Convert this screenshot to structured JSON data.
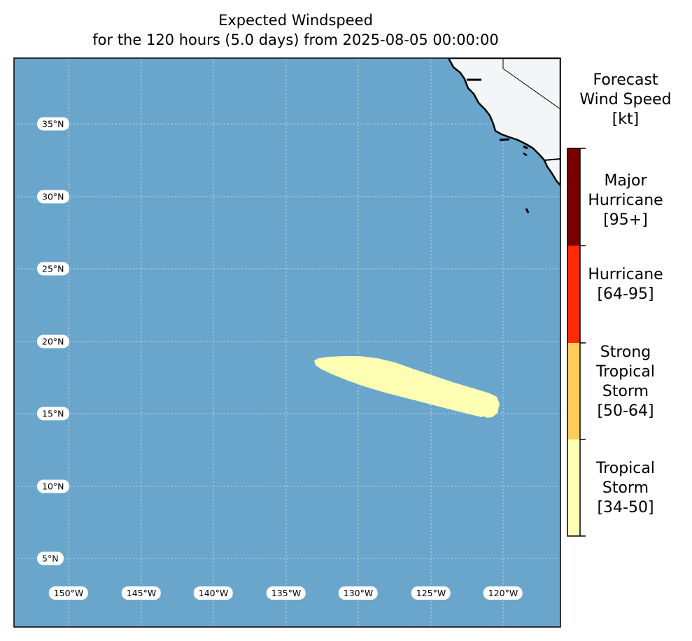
{
  "title": {
    "line1": "Expected Windspeed",
    "line2": "for the 120 hours (5.0 days) from 2025-08-05 00:00:00"
  },
  "map": {
    "ocean_color": "#6aa6cc",
    "land_color": "#f4f5f7",
    "gridline_color": "#c8d6e0",
    "lat_labels": [
      "35°N",
      "30°N",
      "25°N",
      "20°N",
      "15°N",
      "10°N",
      "5°N"
    ],
    "lon_labels": [
      "150°W",
      "145°W",
      "140°W",
      "135°W",
      "130°W",
      "125°W",
      "120°W"
    ],
    "wind_swath": {
      "category": "Tropical Storm [34-50]",
      "color": "#ffffb3"
    }
  },
  "colorbar": {
    "title_lines": [
      "Forecast",
      "Wind Speed",
      "[kt]"
    ],
    "categories": [
      {
        "name": "Tropical Storm [34-50]",
        "lines": [
          "Tropical",
          "Storm",
          "[34-50]"
        ],
        "color": "#ffffb3"
      },
      {
        "name": "Strong Tropical Storm [50-64]",
        "lines": [
          "Strong",
          "Tropical",
          "Storm",
          "[50-64]"
        ],
        "color": "#fdcc5c"
      },
      {
        "name": "Hurricane [64-95]",
        "lines": [
          "Hurricane",
          "[64-95]"
        ],
        "color": "#ff2a08"
      },
      {
        "name": "Major Hurricane [95+]",
        "lines": [
          "Major",
          "Hurricane",
          "[95+]"
        ],
        "color": "#7a0000"
      }
    ]
  }
}
